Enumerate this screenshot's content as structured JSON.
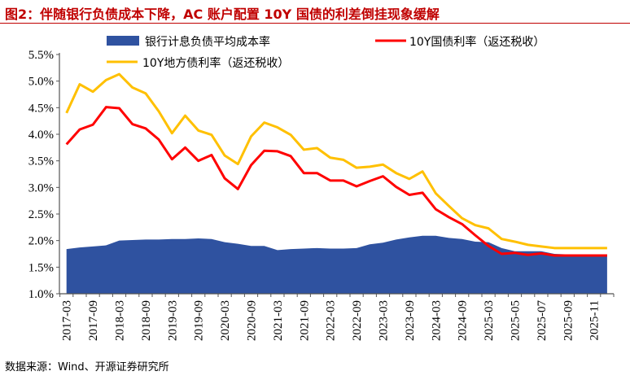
{
  "title": "图2：伴随银行负债成本下降，AC 账户配置 10Y 国债的利差倒挂现象缓解",
  "source": "数据来源：Wind、开源证券研究所",
  "chart_data": {
    "type": "line",
    "ylim": [
      1.0,
      5.5
    ],
    "yticks": [
      "1.0%",
      "1.5%",
      "2.0%",
      "2.5%",
      "3.0%",
      "3.5%",
      "4.0%",
      "4.5%",
      "5.0%",
      "5.5%"
    ],
    "legend_position": "top",
    "grid": false,
    "categories": [
      "2017-03",
      "2017-06",
      "2017-09",
      "2017-12",
      "2018-03",
      "2018-06",
      "2018-09",
      "2018-12",
      "2019-03",
      "2019-06",
      "2019-09",
      "2019-12",
      "2020-03",
      "2020-06",
      "2020-09",
      "2020-12",
      "2021-03",
      "2021-06",
      "2021-09",
      "2021-12",
      "2022-03",
      "2022-06",
      "2022-09",
      "2022-12",
      "2023-03",
      "2023-06",
      "2023-09",
      "2023-12",
      "2024-03",
      "2024-06",
      "2024-09",
      "2024-12",
      "2025-03",
      "2025-04",
      "2025-05",
      "2025-06",
      "2025-07",
      "2025-08",
      "2025-09",
      "2025-10",
      "2025-11",
      "2025-12"
    ],
    "xtick_labels": [
      "2017-03",
      "2017-09",
      "2018-03",
      "2018-09",
      "2019-03",
      "2019-09",
      "2020-03",
      "2020-09",
      "2021-03",
      "2021-09",
      "2022-03",
      "2022-09",
      "2023-03",
      "2023-09",
      "2024-03",
      "2024-09",
      "2025-03",
      "2025-05",
      "2025-07",
      "2025-09",
      "2025-11"
    ],
    "series": [
      {
        "name": "银行计息负债平均成本率",
        "kind": "area",
        "color": "#2f52a0",
        "values": [
          1.84,
          1.87,
          1.89,
          1.91,
          2.0,
          2.01,
          2.02,
          2.02,
          2.03,
          2.03,
          2.04,
          2.03,
          1.97,
          1.94,
          1.9,
          1.9,
          1.82,
          1.84,
          1.85,
          1.86,
          1.85,
          1.85,
          1.86,
          1.93,
          1.96,
          2.02,
          2.06,
          2.09,
          2.09,
          2.05,
          2.03,
          1.98,
          1.97,
          1.86,
          1.8,
          1.8,
          1.8,
          1.75,
          1.74,
          1.74,
          1.74,
          1.74
        ]
      },
      {
        "name": "10Y国债利率（返还税收）",
        "kind": "line",
        "color": "#ff0000",
        "values": [
          3.81,
          4.09,
          4.18,
          4.51,
          4.49,
          4.19,
          4.11,
          3.9,
          3.53,
          3.75,
          3.5,
          3.61,
          3.17,
          2.97,
          3.42,
          3.69,
          3.68,
          3.59,
          3.27,
          3.27,
          3.13,
          3.13,
          3.02,
          3.12,
          3.21,
          3.01,
          2.86,
          2.9,
          2.59,
          2.44,
          2.31,
          2.1,
          1.9,
          1.75,
          1.77,
          1.73,
          1.76,
          1.72,
          1.72,
          1.72,
          1.72,
          1.72
        ]
      },
      {
        "name": "10Y地方债利率（返还税收）",
        "kind": "line",
        "color": "#ffc000",
        "values": [
          4.4,
          4.94,
          4.8,
          5.02,
          5.13,
          4.88,
          4.77,
          4.43,
          4.02,
          4.35,
          4.07,
          3.99,
          3.6,
          3.44,
          3.96,
          4.22,
          4.13,
          3.99,
          3.71,
          3.74,
          3.56,
          3.52,
          3.37,
          3.39,
          3.43,
          3.27,
          3.16,
          3.3,
          2.89,
          2.65,
          2.42,
          2.29,
          2.23,
          2.03,
          1.98,
          1.92,
          1.89,
          1.86,
          1.86,
          1.86,
          1.86,
          1.86
        ]
      }
    ]
  }
}
